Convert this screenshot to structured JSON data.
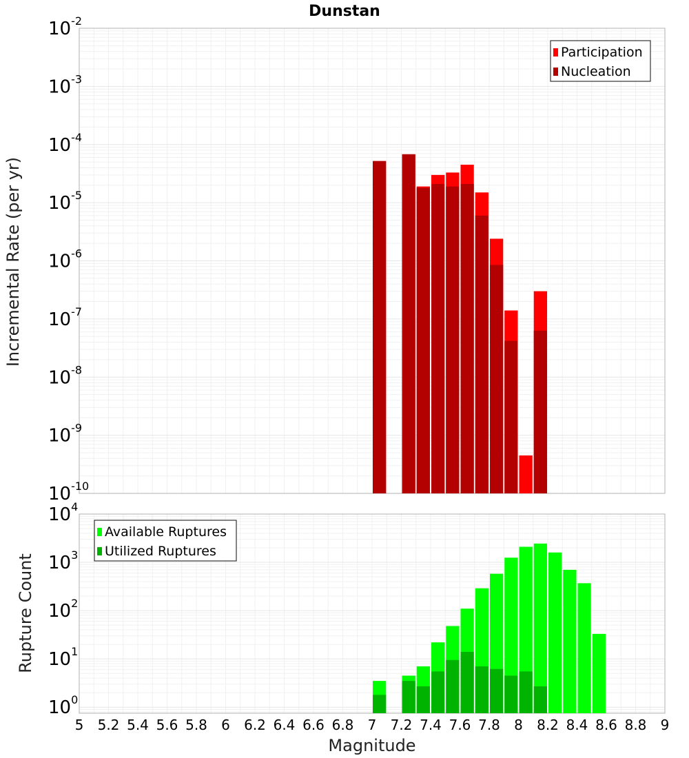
{
  "chart_data": [
    {
      "type": "bar",
      "title": "Dunstan",
      "xlabel": "",
      "ylabel": "Incremental Rate (per yr)",
      "yscale": "log",
      "xlim": [
        5,
        9
      ],
      "ylim": [
        1e-10,
        0.01
      ],
      "y_tick_labels": [
        {
          "base": "10",
          "exp": "-10",
          "value": 1e-10
        },
        {
          "base": "10",
          "exp": "-9",
          "value": 1e-09
        },
        {
          "base": "10",
          "exp": "-8",
          "value": 1e-08
        },
        {
          "base": "10",
          "exp": "-7",
          "value": 1e-07
        },
        {
          "base": "10",
          "exp": "-6",
          "value": 1e-06
        },
        {
          "base": "10",
          "exp": "-5",
          "value": 1e-05
        },
        {
          "base": "10",
          "exp": "-4",
          "value": 0.0001
        },
        {
          "base": "10",
          "exp": "-3",
          "value": 0.001
        },
        {
          "base": "10",
          "exp": "-2",
          "value": 0.01
        }
      ],
      "legend_position": "top-right",
      "grid": true,
      "x": [
        7.05,
        7.25,
        7.35,
        7.45,
        7.55,
        7.65,
        7.75,
        7.85,
        7.95,
        8.05,
        8.15
      ],
      "series": [
        {
          "name": "Participation",
          "color": "#ff0000",
          "values": [
            5.2e-05,
            6.8e-05,
            1.9e-05,
            3e-05,
            3.3e-05,
            4.5e-05,
            1.5e-05,
            2.4e-06,
            1.4e-07,
            4.5e-10,
            3e-07
          ]
        },
        {
          "name": "Nucleation",
          "color": "#b30000",
          "values": [
            5.2e-05,
            6.8e-05,
            1.8e-05,
            2.1e-05,
            1.9e-05,
            2.1e-05,
            6e-06,
            8.5e-07,
            4.2e-08,
            null,
            6.3e-08
          ]
        }
      ]
    },
    {
      "type": "bar",
      "title": "",
      "xlabel": "Magnitude",
      "ylabel": "Rupture Count",
      "yscale": "log",
      "xlim": [
        5,
        9
      ],
      "ylim": [
        0.75,
        10000
      ],
      "y_tick_labels": [
        {
          "base": "10",
          "exp": "0",
          "value": 1
        },
        {
          "base": "10",
          "exp": "1",
          "value": 10
        },
        {
          "base": "10",
          "exp": "2",
          "value": 100
        },
        {
          "base": "10",
          "exp": "3",
          "value": 1000
        },
        {
          "base": "10",
          "exp": "4",
          "value": 10000
        }
      ],
      "x_tick_labels": [
        "5",
        "5.2",
        "5.4",
        "5.6",
        "5.8",
        "6",
        "6.2",
        "6.4",
        "6.6",
        "6.8",
        "7",
        "7.2",
        "7.4",
        "7.6",
        "7.8",
        "8",
        "8.2",
        "8.4",
        "8.6",
        "8.8",
        "9"
      ],
      "legend_position": "top-left",
      "grid": true,
      "x": [
        7.05,
        7.25,
        7.35,
        7.45,
        7.55,
        7.65,
        7.75,
        7.85,
        7.95,
        8.05,
        8.15,
        8.25,
        8.35,
        8.45,
        8.55
      ],
      "series": [
        {
          "name": "Available Ruptures",
          "color": "#00ff00",
          "values": [
            3.5,
            4.5,
            7,
            22,
            48,
            110,
            290,
            580,
            1250,
            2100,
            2450,
            1600,
            700,
            370,
            33
          ]
        },
        {
          "name": "Utilized Ruptures",
          "color": "#00b300",
          "values": [
            1.8,
            3.5,
            2.7,
            5.5,
            9.5,
            14,
            7,
            6.2,
            4.5,
            5.5,
            2.7,
            null,
            null,
            null,
            null
          ]
        }
      ]
    }
  ]
}
